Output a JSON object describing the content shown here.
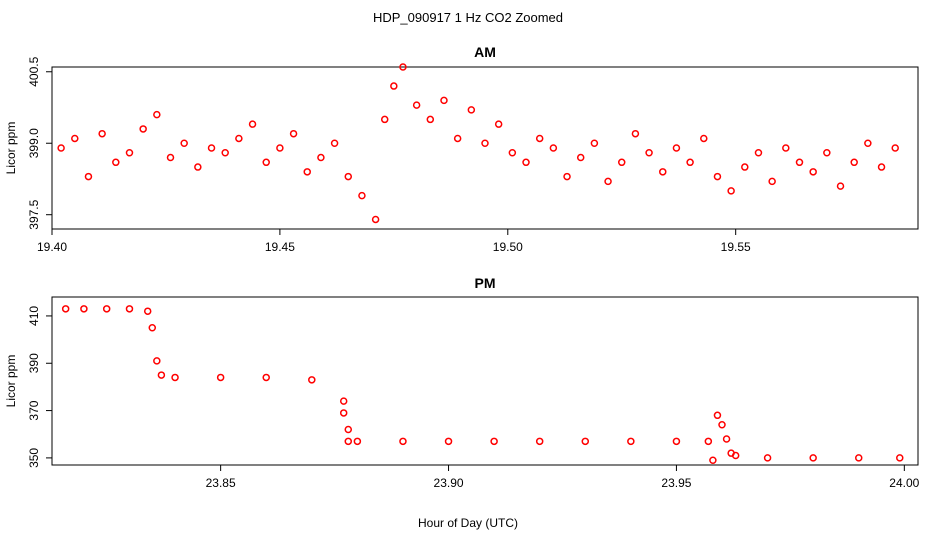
{
  "title": "HDP_090917  1 Hz CO2 Zoomed",
  "xlabel": "Hour of Day (UTC)",
  "marker_color": "#ff0000",
  "chart_data": [
    {
      "type": "scatter",
      "title": "AM",
      "ylabel": "Licor ppm",
      "xlim": [
        19.4,
        19.59
      ],
      "ylim": [
        397.2,
        400.6
      ],
      "xticks": [
        19.4,
        19.45,
        19.5,
        19.55
      ],
      "xtick_labels": [
        "19.40",
        "19.45",
        "19.50",
        "19.55"
      ],
      "yticks": [
        397.5,
        399.0,
        400.5
      ],
      "ytick_labels": [
        "397.5",
        "399.0",
        "400.5"
      ],
      "series": [
        {
          "x": [
            19.402,
            19.405,
            19.408,
            19.411,
            19.414,
            19.417,
            19.42,
            19.423,
            19.426,
            19.429,
            19.432,
            19.435,
            19.438,
            19.441,
            19.444,
            19.447,
            19.45,
            19.453,
            19.456,
            19.459,
            19.462,
            19.465,
            19.468,
            19.471,
            19.473,
            19.475,
            19.477,
            19.48,
            19.483,
            19.486,
            19.489,
            19.492,
            19.495,
            19.498,
            19.501,
            19.504,
            19.507,
            19.51,
            19.513,
            19.516,
            19.519,
            19.522,
            19.525,
            19.528,
            19.531,
            19.534,
            19.537,
            19.54,
            19.543,
            19.546,
            19.549,
            19.552,
            19.555,
            19.558,
            19.561,
            19.564,
            19.567,
            19.57,
            19.573,
            19.576,
            19.579,
            19.582,
            19.585
          ],
          "y": [
            398.9,
            399.1,
            398.3,
            399.2,
            398.6,
            398.8,
            399.3,
            399.6,
            398.7,
            399.0,
            398.5,
            398.9,
            398.8,
            399.1,
            399.4,
            398.6,
            398.9,
            399.2,
            398.4,
            398.7,
            399.0,
            398.3,
            397.9,
            397.4,
            399.5,
            400.2,
            400.6,
            399.8,
            399.5,
            399.9,
            399.1,
            399.7,
            399.0,
            399.4,
            398.8,
            398.6,
            399.1,
            398.9,
            398.3,
            398.7,
            399.0,
            398.2,
            398.6,
            399.2,
            398.8,
            398.4,
            398.9,
            398.6,
            399.1,
            398.3,
            398.0,
            398.5,
            398.8,
            398.2,
            398.9,
            398.6,
            398.4,
            398.8,
            398.1,
            398.6,
            399.0,
            398.5,
            398.9
          ]
        }
      ]
    },
    {
      "type": "scatter",
      "title": "PM",
      "ylabel": "Licor ppm",
      "xlim": [
        23.813,
        24.003
      ],
      "ylim": [
        347,
        418
      ],
      "xticks": [
        23.85,
        23.9,
        23.95,
        24.0
      ],
      "xtick_labels": [
        "23.85",
        "23.90",
        "23.95",
        "24.00"
      ],
      "yticks": [
        350,
        370,
        390,
        410
      ],
      "ytick_labels": [
        "350",
        "370",
        "390",
        "410"
      ],
      "series": [
        {
          "x": [
            23.816,
            23.82,
            23.825,
            23.83,
            23.834,
            23.835,
            23.836,
            23.837,
            23.84,
            23.85,
            23.86,
            23.87,
            23.877,
            23.877,
            23.878,
            23.878,
            23.88,
            23.89,
            23.9,
            23.91,
            23.92,
            23.93,
            23.94,
            23.95,
            23.957,
            23.958,
            23.959,
            23.96,
            23.961,
            23.962,
            23.963,
            23.97,
            23.98,
            23.99,
            23.999
          ],
          "y": [
            413,
            413,
            413,
            413,
            412,
            405,
            391,
            385,
            384,
            384,
            384,
            383,
            374,
            369,
            362,
            357,
            357,
            357,
            357,
            357,
            357,
            357,
            357,
            357,
            357,
            349,
            368,
            364,
            358,
            352,
            351,
            350,
            350,
            350,
            350
          ]
        }
      ]
    }
  ]
}
